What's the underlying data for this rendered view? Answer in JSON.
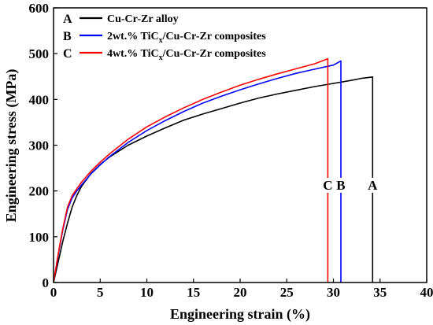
{
  "chart_data": {
    "type": "line",
    "title": "",
    "xlabel": "Engineering strain (%)",
    "ylabel": "Engineering stress (MPa)",
    "xlim": [
      0,
      40
    ],
    "ylim": [
      0,
      600
    ],
    "xticks": [
      0,
      5,
      10,
      15,
      20,
      25,
      30,
      35,
      40
    ],
    "yticks": [
      0,
      100,
      200,
      300,
      400,
      500,
      600
    ],
    "grid": false,
    "legend_position": "top-left",
    "series": [
      {
        "name": "Cu-Cr-Zr alloy",
        "letter": "A",
        "color": "#000000",
        "x": [
          0,
          0.5,
          1,
          1.5,
          2,
          2.5,
          3,
          4,
          5,
          6,
          8,
          10,
          12,
          14,
          16,
          18,
          20,
          22,
          24,
          26,
          28,
          30,
          32,
          33,
          34.2,
          34.2
        ],
        "y": [
          0,
          45,
          90,
          130,
          165,
          190,
          210,
          238,
          258,
          274,
          300,
          320,
          338,
          355,
          368,
          380,
          392,
          403,
          412,
          420,
          428,
          435,
          442,
          446,
          449,
          0
        ]
      },
      {
        "name": "2wt.% TiCx/Cu-Cr-Zr composites",
        "name_main": "2wt.% TiC",
        "name_sub": "x",
        "name_rest": "/Cu-Cr-Zr composites",
        "letter": "B",
        "color": "#0000ff",
        "x": [
          0,
          0.5,
          1,
          1.5,
          2,
          2.5,
          3,
          4,
          5,
          6,
          8,
          10,
          12,
          14,
          16,
          18,
          20,
          22,
          24,
          26,
          28,
          30,
          30.8,
          30.8
        ],
        "y": [
          0,
          60,
          115,
          160,
          185,
          200,
          213,
          237,
          257,
          275,
          306,
          332,
          354,
          374,
          392,
          407,
          421,
          434,
          446,
          457,
          466,
          475,
          484,
          0
        ]
      },
      {
        "name": "4wt.% TiCx/Cu-Cr-Zr composites",
        "name_main": "4wt.% TiC",
        "name_sub": "x",
        "name_rest": "/Cu-Cr-Zr composites",
        "letter": "C",
        "color": "#ff0000",
        "x": [
          0,
          0.5,
          1,
          1.5,
          2,
          2.5,
          3,
          4,
          5,
          6,
          8,
          10,
          12,
          14,
          16,
          18,
          20,
          22,
          24,
          26,
          28,
          29.4,
          29.4
        ],
        "y": [
          0,
          62,
          118,
          165,
          190,
          205,
          219,
          243,
          263,
          281,
          313,
          340,
          362,
          382,
          400,
          416,
          431,
          444,
          456,
          467,
          478,
          489,
          0
        ]
      }
    ],
    "annotations": [
      {
        "text": "C",
        "x": 29.4,
        "y": 203
      },
      {
        "text": "B",
        "x": 30.8,
        "y": 203
      },
      {
        "text": "A",
        "x": 34.2,
        "y": 203
      }
    ]
  }
}
